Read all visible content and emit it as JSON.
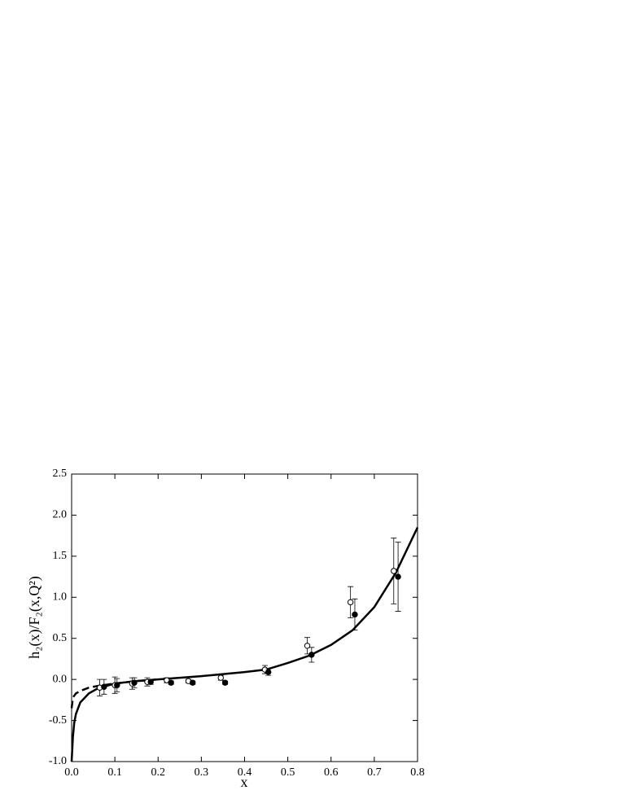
{
  "chart_data": {
    "type": "scatter",
    "xlabel": "x",
    "ylabel": "h₂(x)/F₂(x,Q²)",
    "xlim": [
      0.0,
      0.8
    ],
    "ylim": [
      -1.0,
      2.5
    ],
    "xticks": [
      {
        "value": 0.0,
        "label": "0.0"
      },
      0.1,
      0.2,
      0.3,
      0.4,
      0.5,
      0.6,
      0.7,
      0.8
    ],
    "yticks": [
      {
        "value": -1.0,
        "label": "-1.0"
      },
      -0.5,
      {
        "value": 0.0,
        "label": "0.0"
      },
      0.5,
      {
        "value": 1.0,
        "label": "1.0"
      },
      1.5,
      {
        "value": 2.0,
        "label": "2.0"
      },
      2.5
    ],
    "color": "#000000",
    "series": [
      {
        "marker": "open",
        "x": [
          0.065,
          0.1,
          0.14,
          0.175,
          0.22,
          0.27,
          0.345,
          0.447,
          0.545,
          0.645,
          0.745
        ],
        "values": [
          -0.1,
          -0.07,
          -0.05,
          -0.03,
          -0.01,
          -0.02,
          0.02,
          0.12,
          0.41,
          0.94,
          1.32
        ],
        "errors": [
          0.1,
          0.1,
          0.07,
          0.05,
          0.03,
          0.02,
          0.03,
          0.05,
          0.1,
          0.19,
          0.4
        ]
      },
      {
        "marker": "filled",
        "x": [
          0.075,
          0.105,
          0.145,
          0.183,
          0.23,
          0.28,
          0.355,
          0.455,
          0.555,
          0.655,
          0.755
        ],
        "values": [
          -0.09,
          -0.07,
          -0.04,
          -0.03,
          -0.04,
          -0.04,
          -0.04,
          0.09,
          0.3,
          0.79,
          1.25
        ],
        "errors": [
          0.09,
          0.08,
          0.06,
          0.03,
          0.02,
          0.02,
          0.02,
          0.04,
          0.09,
          0.19,
          0.42
        ]
      }
    ],
    "lines": [
      {
        "style": "solid",
        "x": [
          0.0,
          0.003,
          0.006,
          0.01,
          0.02,
          0.04,
          0.06,
          0.1,
          0.15,
          0.2,
          0.3,
          0.4,
          0.45,
          0.5,
          0.55,
          0.6,
          0.65,
          0.7,
          0.75,
          0.8
        ],
        "values": [
          -1.0,
          -0.7,
          -0.53,
          -0.42,
          -0.28,
          -0.17,
          -0.11,
          -0.05,
          -0.02,
          0.0,
          0.04,
          0.09,
          0.12,
          0.2,
          0.29,
          0.42,
          0.6,
          0.88,
          1.3,
          1.85
        ]
      },
      {
        "style": "dashed",
        "x": [
          0.0,
          0.003,
          0.01,
          0.02,
          0.04,
          0.06,
          0.1,
          0.15,
          0.2
        ],
        "values": [
          -0.35,
          -0.22,
          -0.17,
          -0.14,
          -0.1,
          -0.08,
          -0.05,
          -0.02,
          0.0
        ]
      }
    ]
  }
}
